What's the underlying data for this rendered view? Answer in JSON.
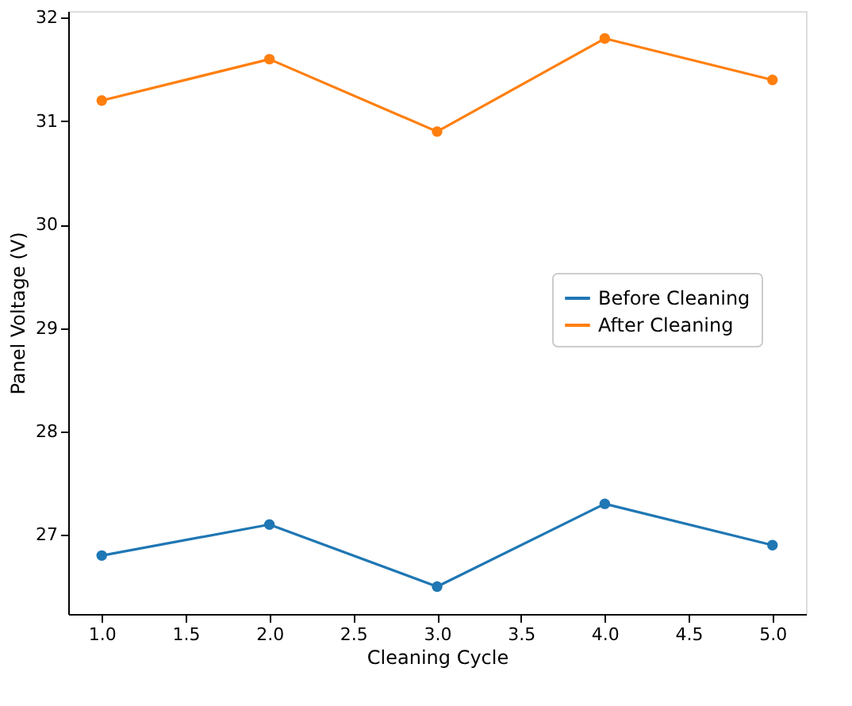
{
  "chart_data": {
    "type": "line",
    "x": [
      1,
      2,
      3,
      4,
      5
    ],
    "xlabel": "Cleaning Cycle",
    "ylabel": "Panel Voltage (V)",
    "series": [
      {
        "name": "Before Cleaning",
        "color": "#1f77b4",
        "values": [
          26.8,
          27.1,
          26.5,
          27.3,
          26.9
        ]
      },
      {
        "name": "After Cleaning",
        "color": "#ff7f0e",
        "values": [
          31.2,
          31.6,
          30.9,
          31.8,
          31.4
        ]
      }
    ],
    "xlim": [
      0.8,
      5.2
    ],
    "xticks": [
      {
        "value": 1,
        "label": "1.0"
      },
      {
        "value": 1.5,
        "label": "1.5"
      },
      {
        "value": 2,
        "label": "2.0"
      },
      {
        "value": 2.5,
        "label": "2.5"
      },
      {
        "value": 3,
        "label": "3.0"
      },
      {
        "value": 3.5,
        "label": "3.5"
      },
      {
        "value": 4,
        "label": "4.0"
      },
      {
        "value": 4.5,
        "label": "4.5"
      },
      {
        "value": 5,
        "label": "5.0"
      }
    ],
    "ylim": [
      26.235,
      32.065
    ],
    "yticks": [
      27,
      28,
      29,
      30,
      31,
      32
    ],
    "grid": false,
    "legend": "center right",
    "marker": "circle",
    "line_style": "solid"
  }
}
